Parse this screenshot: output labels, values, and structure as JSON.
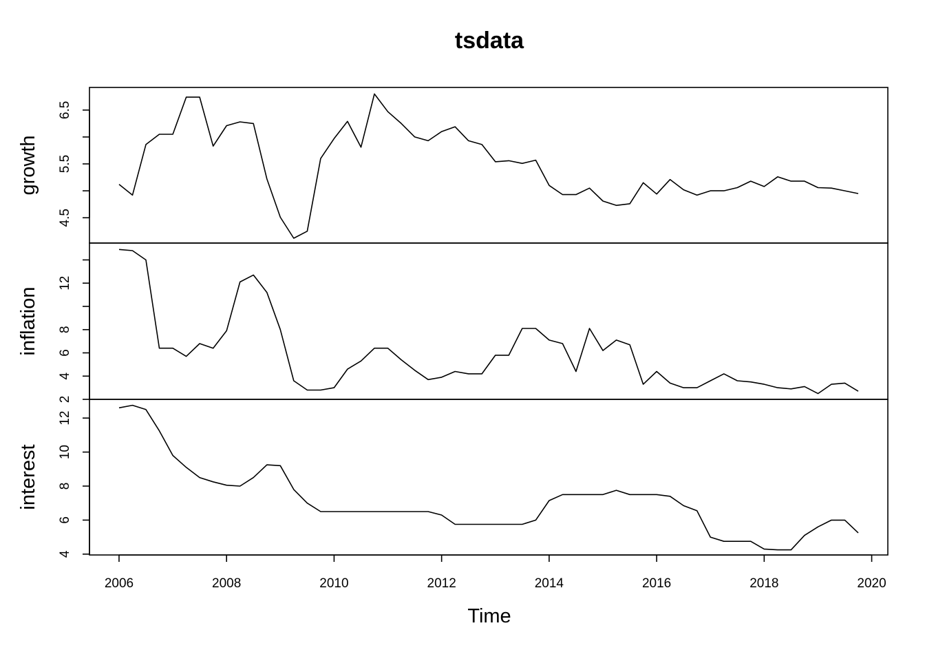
{
  "chart_data": {
    "type": "line",
    "title": "tsdata",
    "xlabel": "Time",
    "xlim": [
      2005.45,
      2020.3
    ],
    "x_ticks": [
      2006,
      2008,
      2010,
      2012,
      2014,
      2016,
      2018,
      2020
    ],
    "x_tick_labels": [
      "2006",
      "2008",
      "2010",
      "2012",
      "2014",
      "2016",
      "2018",
      "2020"
    ],
    "x_start": 2006,
    "x_step": 0.25,
    "grid": false,
    "legend": "none",
    "series": [
      {
        "name": "growth",
        "ylim": [
          4.03,
          6.92
        ],
        "y_ticks": [
          4.5,
          5.0,
          5.5,
          6.0,
          6.5
        ],
        "y_tick_labels": [
          "4.5",
          "",
          "5.5",
          "",
          "6.5"
        ],
        "values": [
          5.12,
          4.92,
          5.86,
          6.05,
          6.05,
          6.74,
          6.74,
          5.83,
          6.21,
          6.28,
          6.25,
          5.22,
          4.51,
          4.12,
          4.25,
          5.6,
          5.97,
          6.29,
          5.81,
          6.8,
          6.47,
          6.25,
          6.0,
          5.93,
          6.1,
          6.19,
          5.93,
          5.86,
          5.54,
          5.56,
          5.51,
          5.57,
          5.1,
          4.93,
          4.93,
          5.05,
          4.81,
          4.73,
          4.76,
          5.15,
          4.94,
          5.21,
          5.02,
          4.92,
          5.0,
          5.0,
          5.06,
          5.18,
          5.08,
          5.26,
          5.18,
          5.18,
          5.06,
          5.05,
          5.0,
          4.95
        ]
      },
      {
        "name": "inflation",
        "ylim": [
          2.0,
          15.45
        ],
        "y_ticks": [
          2,
          4,
          6,
          8,
          10,
          12,
          14
        ],
        "y_tick_labels": [
          "2",
          "4",
          "6",
          "8",
          "",
          "12",
          ""
        ],
        "values": [
          14.9,
          14.8,
          14.0,
          6.4,
          6.4,
          5.7,
          6.8,
          6.4,
          7.9,
          12.1,
          12.7,
          11.2,
          8.0,
          3.6,
          2.8,
          2.8,
          3.0,
          4.6,
          5.3,
          6.4,
          6.4,
          5.4,
          4.5,
          3.7,
          3.9,
          4.4,
          4.2,
          4.2,
          5.8,
          5.8,
          8.1,
          8.1,
          7.1,
          6.8,
          4.4,
          8.1,
          6.2,
          7.1,
          6.7,
          3.3,
          4.4,
          3.4,
          3.0,
          3.0,
          3.6,
          4.2,
          3.6,
          3.5,
          3.3,
          3.0,
          2.9,
          3.1,
          2.5,
          3.3,
          3.4,
          2.7
        ]
      },
      {
        "name": "interest",
        "ylim": [
          3.95,
          13.1
        ],
        "y_ticks": [
          4,
          6,
          8,
          10,
          12
        ],
        "y_tick_labels": [
          "4",
          "6",
          "8",
          "10",
          "12"
        ],
        "values": [
          12.6,
          12.75,
          12.5,
          11.25,
          9.8,
          9.1,
          8.5,
          8.25,
          8.05,
          8.0,
          8.5,
          9.25,
          9.2,
          7.8,
          7.0,
          6.5,
          6.5,
          6.5,
          6.5,
          6.5,
          6.5,
          6.5,
          6.5,
          6.5,
          6.3,
          5.75,
          5.75,
          5.75,
          5.75,
          5.75,
          5.75,
          6.0,
          7.15,
          7.5,
          7.5,
          7.5,
          7.5,
          7.75,
          7.5,
          7.5,
          7.5,
          7.4,
          6.85,
          6.55,
          5.0,
          4.75,
          4.75,
          4.75,
          4.3,
          4.25,
          4.25,
          5.1,
          5.6,
          6.0,
          6.0,
          5.25
        ]
      }
    ]
  }
}
